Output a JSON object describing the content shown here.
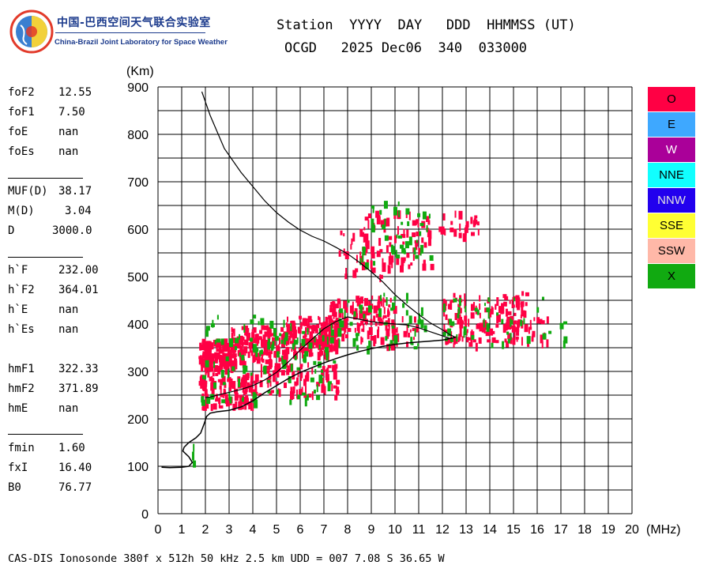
{
  "header": {
    "institution": "中国-巴西空间天气联合实验室",
    "institution_en": "China-Brazil Joint Laboratory for Space Weather",
    "line1": "Station  YYYY  DAY   DDD  HHMMSS (UT)",
    "line2": "OCGD   2025 Dec06  340  033000"
  },
  "params": [
    {
      "label": "foF2",
      "value": "12.55"
    },
    {
      "label": "foF1",
      "value": "7.50"
    },
    {
      "label": "foE",
      "value": "nan"
    },
    {
      "label": "foEs",
      "value": "nan"
    },
    {
      "label": "MUF(D)",
      "value": "38.17"
    },
    {
      "label": "M(D)",
      "value": "3.04"
    },
    {
      "label": "D",
      "value": "3000.0"
    },
    {
      "label": "h`F",
      "value": "232.00"
    },
    {
      "label": "h`F2",
      "value": "364.01"
    },
    {
      "label": "h`E",
      "value": "nan"
    },
    {
      "label": "h`Es",
      "value": "nan"
    },
    {
      "label": "hmF2",
      "value": "371.89"
    },
    {
      "label": "hmF1",
      "value": "322.33"
    },
    {
      "label": "hmE",
      "value": "nan"
    },
    {
      "label": "fmin",
      "value": "1.60"
    },
    {
      "label": "fxI",
      "value": "16.40"
    },
    {
      "label": "B0",
      "value": "76.77"
    }
  ],
  "legend": [
    {
      "label": "O",
      "color": "#ff0044"
    },
    {
      "label": "E",
      "color": "#3ea8ff"
    },
    {
      "label": "W",
      "color": "#aa0099"
    },
    {
      "label": "NNE",
      "color": "#11ffff"
    },
    {
      "label": "NNW",
      "color": "#2200ee"
    },
    {
      "label": "SSE",
      "color": "#ffff33"
    },
    {
      "label": "SSW",
      "color": "#ffb8a8"
    },
    {
      "label": "X",
      "color": "#11aa11"
    }
  ],
  "footer": "CAS-DIS Ionosonde 380f x 512h 50 kHz 2.5 km UDD = 007 7.08 S 36.65 W",
  "chart_data": {
    "type": "scatter",
    "ylabel": "(Km)",
    "xlabel": "(MHz)",
    "xlim": [
      0,
      20
    ],
    "ylim": [
      0,
      900
    ],
    "xticks": [
      "0",
      "1",
      "2",
      "3",
      "4",
      "5",
      "6",
      "7",
      "8",
      "9",
      "10",
      "11",
      "12",
      "13",
      "14",
      "15",
      "16",
      "17",
      "18",
      "19",
      "20"
    ],
    "yticks": [
      "0",
      "100",
      "200",
      "300",
      "400",
      "500",
      "600",
      "700",
      "800",
      "900"
    ],
    "grid": true,
    "profile_curve": [
      [
        0.15,
        98
      ],
      [
        0.5,
        97
      ],
      [
        1.0,
        98
      ],
      [
        1.3,
        100
      ],
      [
        1.45,
        108
      ],
      [
        1.3,
        120
      ],
      [
        1.05,
        132
      ],
      [
        1.1,
        140
      ],
      [
        1.3,
        150
      ],
      [
        1.6,
        160
      ],
      [
        1.8,
        170
      ],
      [
        1.95,
        190
      ],
      [
        2.05,
        205
      ],
      [
        2.2,
        212
      ],
      [
        2.5,
        215
      ],
      [
        3.0,
        218
      ],
      [
        3.5,
        225
      ],
      [
        4.0,
        238
      ],
      [
        4.5,
        255
      ],
      [
        5.0,
        270
      ],
      [
        5.5,
        285
      ],
      [
        6.0,
        298
      ],
      [
        6.5,
        308
      ],
      [
        7.0,
        318
      ],
      [
        7.5,
        327
      ],
      [
        8.0,
        335
      ],
      [
        8.5,
        342
      ],
      [
        9.0,
        348
      ],
      [
        9.5,
        353
      ],
      [
        10.0,
        357
      ],
      [
        10.5,
        360
      ],
      [
        11.0,
        362
      ],
      [
        11.5,
        364
      ],
      [
        12.0,
        366
      ],
      [
        12.4,
        370
      ],
      [
        12.55,
        372
      ]
    ],
    "trace_curve": [
      [
        1.85,
        890
      ],
      [
        2.2,
        840
      ],
      [
        2.8,
        770
      ],
      [
        3.5,
        720
      ],
      [
        4.0,
        690
      ],
      [
        4.5,
        660
      ],
      [
        5.0,
        635
      ],
      [
        5.5,
        615
      ],
      [
        6.0,
        598
      ],
      [
        6.5,
        585
      ],
      [
        7.0,
        575
      ],
      [
        7.5,
        562
      ],
      [
        8.0,
        548
      ],
      [
        8.5,
        530
      ],
      [
        9.0,
        510
      ],
      [
        9.5,
        488
      ],
      [
        10.0,
        462
      ],
      [
        10.5,
        440
      ],
      [
        11.0,
        420
      ],
      [
        11.5,
        402
      ],
      [
        12.0,
        388
      ],
      [
        12.3,
        378
      ],
      [
        12.55,
        372
      ],
      [
        12.3,
        370
      ],
      [
        11.0,
        392
      ],
      [
        10.5,
        398
      ],
      [
        10.0,
        400
      ],
      [
        9.5,
        402
      ],
      [
        9.0,
        405
      ],
      [
        8.5,
        410
      ],
      [
        8.0,
        415
      ],
      [
        7.5,
        405
      ],
      [
        7.0,
        390
      ],
      [
        6.5,
        368
      ],
      [
        6.0,
        345
      ],
      [
        5.5,
        320
      ],
      [
        5.0,
        298
      ],
      [
        4.5,
        282
      ],
      [
        4.0,
        270
      ],
      [
        3.5,
        262
      ],
      [
        3.0,
        256
      ],
      [
        2.5,
        250
      ],
      [
        2.2,
        246
      ],
      [
        2.0,
        245
      ]
    ],
    "echo_clusters": [
      {
        "name": "O",
        "color": "#ff0044",
        "regions": [
          {
            "x": [
              1.7,
              3.2
            ],
            "y": [
              310,
              370
            ],
            "n": 150
          },
          {
            "x": [
              3.0,
              5.5
            ],
            "y": [
              320,
              400
            ],
            "n": 160
          },
          {
            "x": [
              5.3,
              7.6
            ],
            "y": [
              340,
              420
            ],
            "n": 130
          },
          {
            "x": [
              7.0,
              10.0
            ],
            "y": [
              370,
              460
            ],
            "n": 120
          },
          {
            "x": [
              1.7,
              4.0
            ],
            "y": [
              225,
              300
            ],
            "n": 110
          },
          {
            "x": [
              4.0,
              7.6
            ],
            "y": [
              250,
              320
            ],
            "n": 90
          },
          {
            "x": [
              6.3,
              7.6
            ],
            "y": [
              360,
              400
            ],
            "n": 40
          },
          {
            "x": [
              8.5,
              11.5
            ],
            "y": [
              520,
              640
            ],
            "n": 90
          },
          {
            "x": [
              11.8,
              13.5
            ],
            "y": [
              590,
              640
            ],
            "n": 25
          },
          {
            "x": [
              7.5,
              9.5
            ],
            "y": [
              500,
              600
            ],
            "n": 20
          },
          {
            "x": [
              12.0,
              16.5
            ],
            "y": [
              360,
              420
            ],
            "n": 100
          },
          {
            "x": [
              12.0,
              15.5
            ],
            "y": [
              420,
              470
            ],
            "n": 70
          },
          {
            "x": [
              9.0,
              11.0
            ],
            "y": [
              350,
              420
            ],
            "n": 30
          }
        ]
      },
      {
        "name": "X",
        "color": "#11aa11",
        "regions": [
          {
            "x": [
              1.7,
              7.5
            ],
            "y": [
              240,
              420
            ],
            "n": 120
          },
          {
            "x": [
              7.5,
              11.5
            ],
            "y": [
              350,
              470
            ],
            "n": 50
          },
          {
            "x": [
              8.5,
              11.5
            ],
            "y": [
              530,
              660
            ],
            "n": 45
          },
          {
            "x": [
              12.0,
              17.2
            ],
            "y": [
              360,
              460
            ],
            "n": 45
          },
          {
            "x": [
              1.4,
              1.6
            ],
            "y": [
              90,
              150
            ],
            "n": 3
          }
        ]
      }
    ]
  }
}
